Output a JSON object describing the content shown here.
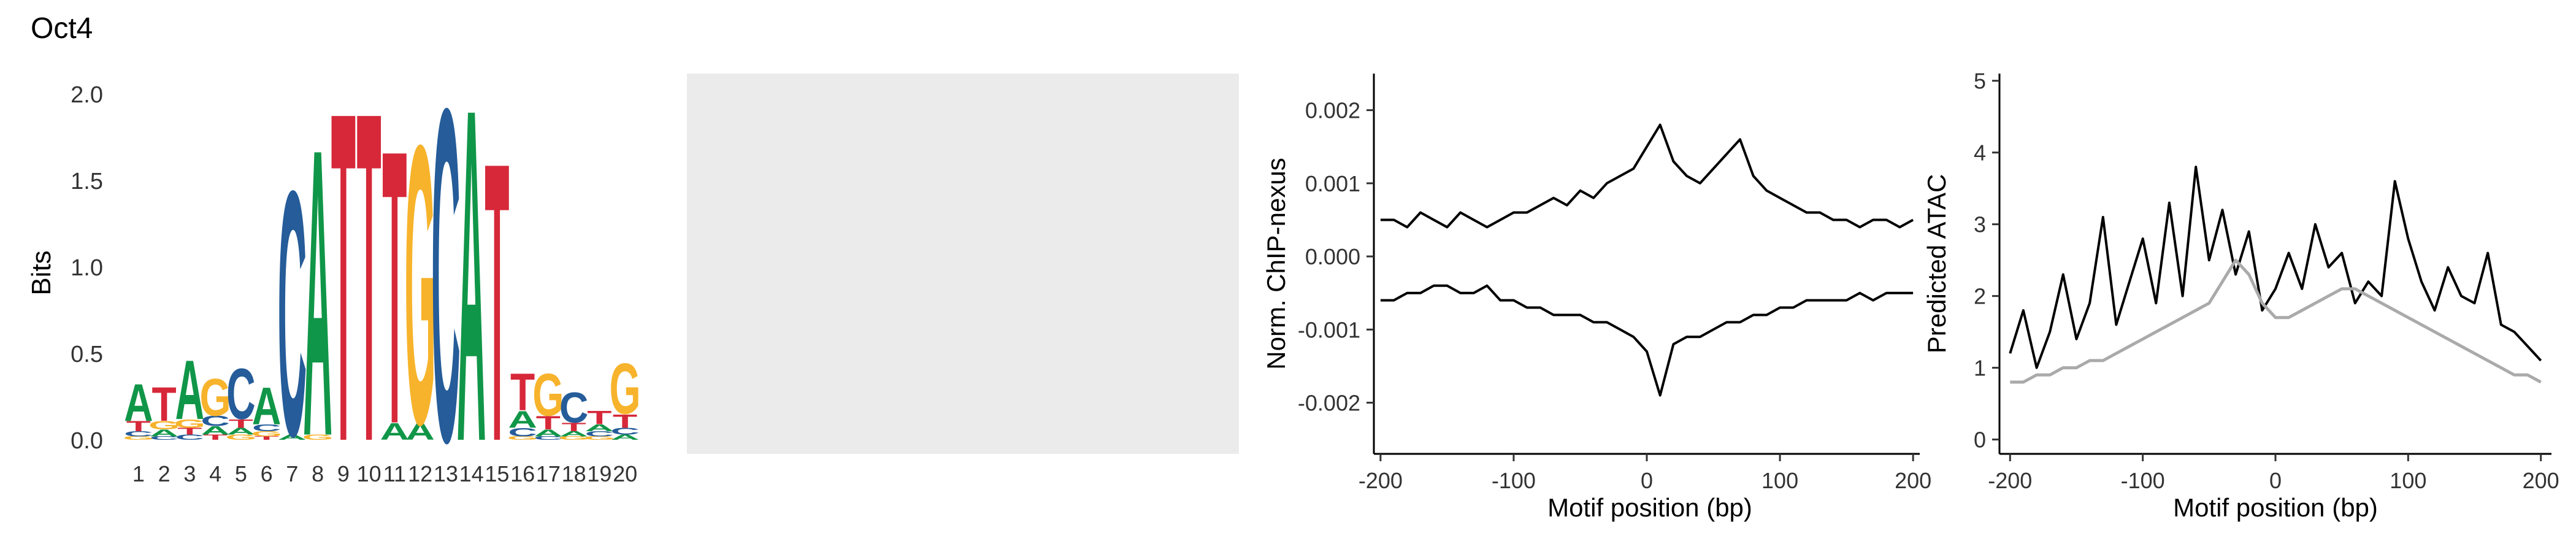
{
  "figure": {
    "title": "Oct4",
    "colors": {
      "A": "#109648",
      "C": "#255C99",
      "G": "#F7B32B",
      "T": "#D62839",
      "placeholder": "#EBEBEB",
      "chip": "#000000",
      "atac_observed": "#000000",
      "atac_predicted": "#AAAAAA"
    }
  },
  "chart_data": [
    {
      "type": "sequence-logo",
      "ylabel": "Bits",
      "ylim": [
        0,
        2
      ],
      "yticks": [
        "0.0",
        "0.5",
        "1.0",
        "1.5",
        "2.0"
      ],
      "positions": [
        "1",
        "2",
        "3",
        "4",
        "5",
        "6",
        "7",
        "8",
        "9",
        "10",
        "11",
        "12",
        "13",
        "14",
        "15",
        "16",
        "17",
        "18",
        "19",
        "20"
      ],
      "letters": [
        [
          {
            "base": "A",
            "bits": 0.22
          },
          {
            "base": "T",
            "bits": 0.06
          },
          {
            "base": "C",
            "bits": 0.03
          },
          {
            "base": "G",
            "bits": 0.02
          }
        ],
        [
          {
            "base": "T",
            "bits": 0.2
          },
          {
            "base": "G",
            "bits": 0.05
          },
          {
            "base": "A",
            "bits": 0.04
          },
          {
            "base": "C",
            "bits": 0.02
          }
        ],
        [
          {
            "base": "A",
            "bits": 0.35
          },
          {
            "base": "G",
            "bits": 0.05
          },
          {
            "base": "T",
            "bits": 0.04
          },
          {
            "base": "C",
            "bits": 0.03
          }
        ],
        [
          {
            "base": "G",
            "bits": 0.22
          },
          {
            "base": "C",
            "bits": 0.06
          },
          {
            "base": "A",
            "bits": 0.05
          },
          {
            "base": "T",
            "bits": 0.03
          }
        ],
        [
          {
            "base": "C",
            "bits": 0.3
          },
          {
            "base": "T",
            "bits": 0.05
          },
          {
            "base": "A",
            "bits": 0.04
          },
          {
            "base": "G",
            "bits": 0.03
          }
        ],
        [
          {
            "base": "A",
            "bits": 0.22
          },
          {
            "base": "C",
            "bits": 0.04
          },
          {
            "base": "G",
            "bits": 0.03
          },
          {
            "base": "T",
            "bits": 0.02
          }
        ],
        [
          {
            "base": "C",
            "bits": 1.45
          },
          {
            "base": "A",
            "bits": 0.03
          }
        ],
        [
          {
            "base": "A",
            "bits": 1.7
          },
          {
            "base": "G",
            "bits": 0.03
          }
        ],
        [
          {
            "base": "T",
            "bits": 1.95
          }
        ],
        [
          {
            "base": "T",
            "bits": 1.95
          }
        ],
        [
          {
            "base": "T",
            "bits": 1.62
          },
          {
            "base": "A",
            "bits": 0.1
          }
        ],
        [
          {
            "base": "G",
            "bits": 1.65
          },
          {
            "base": "A",
            "bits": 0.1
          }
        ],
        [
          {
            "base": "C",
            "bits": 1.97
          }
        ],
        [
          {
            "base": "A",
            "bits": 1.97
          }
        ],
        [
          {
            "base": "T",
            "bits": 1.65
          }
        ],
        [
          {
            "base": "T",
            "bits": 0.22
          },
          {
            "base": "A",
            "bits": 0.1
          },
          {
            "base": "C",
            "bits": 0.05
          },
          {
            "base": "G",
            "bits": 0.02
          }
        ],
        [
          {
            "base": "G",
            "bits": 0.25
          },
          {
            "base": "T",
            "bits": 0.08
          },
          {
            "base": "A",
            "bits": 0.04
          },
          {
            "base": "C",
            "bits": 0.02
          }
        ],
        [
          {
            "base": "C",
            "bits": 0.18
          },
          {
            "base": "T",
            "bits": 0.05
          },
          {
            "base": "A",
            "bits": 0.03
          },
          {
            "base": "G",
            "bits": 0.02
          }
        ],
        [
          {
            "base": "T",
            "bits": 0.08
          },
          {
            "base": "A",
            "bits": 0.04
          },
          {
            "base": "C",
            "bits": 0.03
          },
          {
            "base": "G",
            "bits": 0.02
          }
        ],
        [
          {
            "base": "G",
            "bits": 0.3
          },
          {
            "base": "T",
            "bits": 0.08
          },
          {
            "base": "C",
            "bits": 0.04
          },
          {
            "base": "A",
            "bits": 0.03
          }
        ]
      ]
    },
    {
      "type": "placeholder"
    },
    {
      "type": "line",
      "xlabel": "Motif position (bp)",
      "ylabel": "Norm. ChIP-nexus",
      "xlim": [
        -205,
        205
      ],
      "ylim": [
        -0.0027,
        0.0025
      ],
      "xticks": [
        "-200",
        "-100",
        "0",
        "100",
        "200"
      ],
      "yticks": [
        "-0.002",
        "-0.001",
        "0.000",
        "0.001",
        "0.002"
      ],
      "x": [
        -200,
        -190,
        -180,
        -170,
        -160,
        -150,
        -140,
        -130,
        -120,
        -110,
        -100,
        -90,
        -80,
        -70,
        -60,
        -50,
        -40,
        -30,
        -20,
        -10,
        0,
        10,
        20,
        30,
        40,
        50,
        60,
        70,
        80,
        90,
        100,
        110,
        120,
        130,
        140,
        150,
        160,
        170,
        180,
        190,
        200
      ],
      "series": [
        {
          "values": [
            0.0005,
            0.0005,
            0.0004,
            0.0006,
            0.0005,
            0.0004,
            0.0006,
            0.0005,
            0.0004,
            0.0005,
            0.0006,
            0.0006,
            0.0007,
            0.0008,
            0.0007,
            0.0009,
            0.0008,
            0.001,
            0.0011,
            0.0012,
            0.0015,
            0.0018,
            0.0013,
            0.0011,
            0.001,
            0.0012,
            0.0014,
            0.0016,
            0.0011,
            0.0009,
            0.0008,
            0.0007,
            0.0006,
            0.0006,
            0.0005,
            0.0005,
            0.0004,
            0.0005,
            0.0005,
            0.0004,
            0.0005
          ]
        },
        {
          "values": [
            -0.0006,
            -0.0006,
            -0.0005,
            -0.0005,
            -0.0004,
            -0.0004,
            -0.0005,
            -0.0005,
            -0.0004,
            -0.0006,
            -0.0006,
            -0.0007,
            -0.0007,
            -0.0008,
            -0.0008,
            -0.0008,
            -0.0009,
            -0.0009,
            -0.001,
            -0.0011,
            -0.0013,
            -0.0019,
            -0.0012,
            -0.0011,
            -0.0011,
            -0.001,
            -0.0009,
            -0.0009,
            -0.0008,
            -0.0008,
            -0.0007,
            -0.0007,
            -0.0006,
            -0.0006,
            -0.0006,
            -0.0006,
            -0.0005,
            -0.0006,
            -0.0005,
            -0.0005,
            -0.0005
          ]
        }
      ]
    },
    {
      "type": "line",
      "xlabel": "Motif position (bp)",
      "ylabel": "Predicted ATAC",
      "xlim": [
        -208,
        208
      ],
      "ylim": [
        -0.2,
        5.1
      ],
      "xticks": [
        "-200",
        "-100",
        "0",
        "100",
        "200"
      ],
      "yticks": [
        "0",
        "1",
        "2",
        "3",
        "4",
        "5"
      ],
      "x": [
        -200,
        -190,
        -180,
        -170,
        -160,
        -150,
        -140,
        -130,
        -120,
        -110,
        -100,
        -90,
        -80,
        -70,
        -60,
        -50,
        -40,
        -30,
        -20,
        -10,
        0,
        10,
        20,
        30,
        40,
        50,
        60,
        70,
        80,
        90,
        100,
        110,
        120,
        130,
        140,
        150,
        160,
        170,
        180,
        190,
        200
      ],
      "series": [
        {
          "values": [
            1.2,
            1.8,
            1.0,
            1.5,
            2.3,
            1.4,
            1.9,
            3.1,
            1.6,
            2.2,
            2.8,
            1.9,
            3.3,
            2.0,
            3.8,
            2.5,
            3.2,
            2.3,
            2.9,
            1.8,
            2.1,
            2.6,
            2.1,
            3.0,
            2.4,
            2.6,
            1.9,
            2.2,
            2.0,
            3.6,
            2.8,
            2.2,
            1.8,
            2.4,
            2.0,
            1.9,
            2.6,
            1.6,
            1.5,
            1.3,
            1.1
          ]
        },
        {
          "values": [
            0.8,
            0.8,
            0.9,
            0.9,
            1.0,
            1.0,
            1.1,
            1.1,
            1.2,
            1.3,
            1.4,
            1.5,
            1.6,
            1.7,
            1.8,
            1.9,
            2.2,
            2.5,
            2.3,
            1.9,
            1.7,
            1.7,
            1.8,
            1.9,
            2.0,
            2.1,
            2.1,
            2.0,
            1.9,
            1.8,
            1.7,
            1.6,
            1.5,
            1.4,
            1.3,
            1.2,
            1.1,
            1.0,
            0.9,
            0.9,
            0.8
          ]
        }
      ]
    }
  ]
}
